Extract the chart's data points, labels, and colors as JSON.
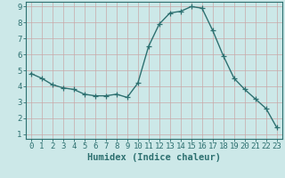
{
  "xlabel": "Humidex (Indice chaleur)",
  "x": [
    0,
    1,
    2,
    3,
    4,
    5,
    6,
    7,
    8,
    9,
    10,
    11,
    12,
    13,
    14,
    15,
    16,
    17,
    18,
    19,
    20,
    21,
    22,
    23
  ],
  "y": [
    4.8,
    4.5,
    4.1,
    3.9,
    3.8,
    3.5,
    3.4,
    3.4,
    3.5,
    3.3,
    4.2,
    6.5,
    7.9,
    8.6,
    8.7,
    9.0,
    8.9,
    7.5,
    5.9,
    4.5,
    3.8,
    3.2,
    2.6,
    1.4
  ],
  "line_color": "#2d7070",
  "marker": "+",
  "marker_size": 4,
  "background_color": "#cce8e8",
  "grid_color": "#b8d8d8",
  "ylim": [
    0.7,
    9.3
  ],
  "xlim": [
    -0.5,
    23.5
  ],
  "yticks": [
    1,
    2,
    3,
    4,
    5,
    6,
    7,
    8,
    9
  ],
  "xticks": [
    0,
    1,
    2,
    3,
    4,
    5,
    6,
    7,
    8,
    9,
    10,
    11,
    12,
    13,
    14,
    15,
    16,
    17,
    18,
    19,
    20,
    21,
    22,
    23
  ],
  "xlabel_fontsize": 7.5,
  "tick_fontsize": 6.5,
  "line_width": 1.0
}
